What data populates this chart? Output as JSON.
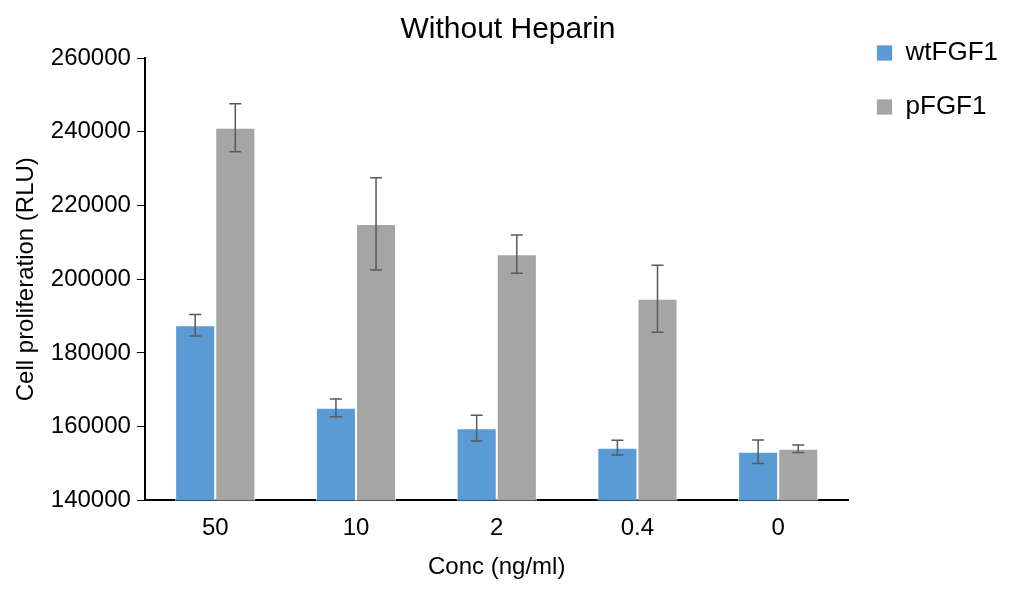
{
  "chart_data": {
    "type": "bar",
    "title": "Without Heparin",
    "xlabel": "Conc (ng/ml)",
    "ylabel": "Cell proliferation (RLU)",
    "categories": [
      "50",
      "10",
      "2",
      "0.4",
      "0"
    ],
    "series": [
      {
        "name": "wtFGF1",
        "color": "#5b9bd5",
        "values": [
          187500,
          165100,
          159600,
          154300,
          153200
        ],
        "errors": [
          2900,
          2400,
          3500,
          2000,
          3200
        ]
      },
      {
        "name": "pFGF1",
        "color": "#a5a5a5",
        "values": [
          241100,
          215000,
          206800,
          194700,
          154000
        ],
        "errors": [
          6500,
          12500,
          5200,
          9100,
          1000
        ]
      }
    ],
    "ylim": [
      140000,
      260000
    ],
    "yticks": [
      140000,
      160000,
      180000,
      200000,
      220000,
      240000,
      260000
    ],
    "grid": false,
    "legend": "top right"
  }
}
